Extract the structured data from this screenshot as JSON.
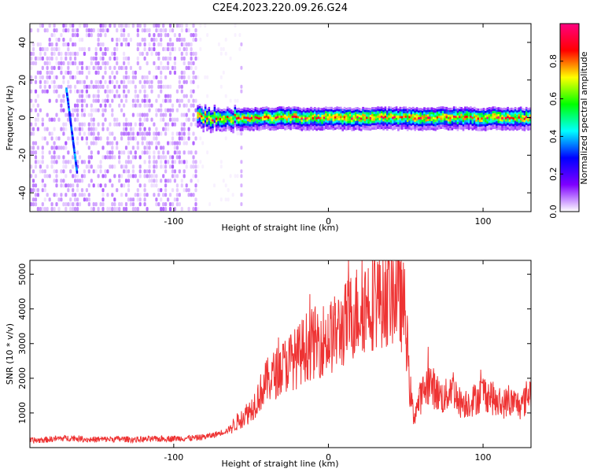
{
  "title": "C2E4.2023.220.09.26.G24",
  "chart_data": [
    {
      "type": "heatmap",
      "xlabel": "Height of straight line (km)",
      "ylabel": "Frequency (Hz)",
      "xlim": [
        -193,
        131
      ],
      "ylim": [
        -50,
        50
      ],
      "xticks": [
        -100,
        0,
        100
      ],
      "yticks": [
        -40,
        -20,
        0,
        20,
        40
      ],
      "colorbar": {
        "label": "Normalized spectral amplitude",
        "range": [
          0,
          1
        ],
        "ticks": [
          0.0,
          0.2,
          0.4,
          0.6,
          0.8
        ],
        "colors": [
          "#ffffff",
          "#7f00ff",
          "#0000ff",
          "#00ffff",
          "#00ff00",
          "#ffff00",
          "#ff0000",
          "#ff0080"
        ]
      },
      "features": {
        "noise_region_x": [
          -193,
          -85
        ],
        "gap_x": [
          -85,
          -55
        ],
        "signal_start_x": -85,
        "signal_line_frequency": 0,
        "chirp_streak": {
          "x": [
            -170,
            -163
          ],
          "y": [
            15,
            -30
          ]
        }
      },
      "grid": false
    },
    {
      "type": "line",
      "xlabel": "Height of straight line (km)",
      "ylabel": "SNR (10 * v/v)",
      "xlim": [
        -193,
        131
      ],
      "ylim": [
        0,
        5400
      ],
      "xticks": [
        -100,
        0,
        100
      ],
      "yticks": [
        1000,
        2000,
        3000,
        4000,
        5000
      ],
      "color": "#ee3333",
      "x": [
        -193,
        -185,
        -175,
        -165,
        -155,
        -145,
        -135,
        -125,
        -115,
        -105,
        -95,
        -85,
        -75,
        -65,
        -60,
        -55,
        -50,
        -45,
        -40,
        -35,
        -30,
        -25,
        -20,
        -15,
        -10,
        -5,
        0,
        5,
        10,
        15,
        20,
        25,
        30,
        35,
        40,
        45,
        50,
        52,
        55,
        60,
        65,
        70,
        75,
        80,
        85,
        90,
        95,
        100,
        105,
        110,
        115,
        120,
        125,
        131
      ],
      "values": [
        200,
        220,
        260,
        280,
        230,
        240,
        250,
        230,
        240,
        260,
        270,
        280,
        350,
        500,
        700,
        900,
        1100,
        1500,
        1900,
        2100,
        2300,
        2500,
        2600,
        2900,
        3000,
        3100,
        3150,
        3300,
        3500,
        3800,
        4000,
        4200,
        4300,
        4400,
        4450,
        4500,
        3800,
        2000,
        900,
        1500,
        1900,
        1600,
        1400,
        1800,
        1300,
        1300,
        1400,
        1600,
        1500,
        1200,
        1300,
        1300,
        1200,
        1700
      ],
      "grid": false
    }
  ]
}
